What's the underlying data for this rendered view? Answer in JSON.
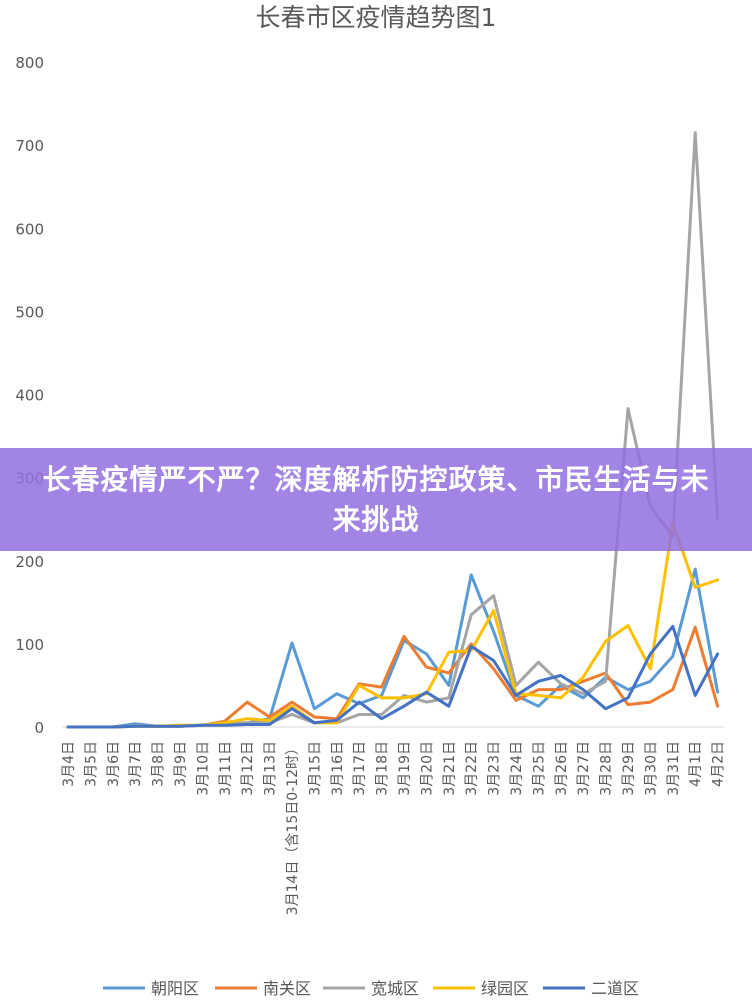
{
  "banner": {
    "headline": "长春疫情严不严？深度解析防控政策、市民生活与未来挑战"
  },
  "chart_data": {
    "type": "line",
    "title": "长春市区疫情趋势图1",
    "xlabel": "",
    "ylabel": "",
    "ylim": [
      0,
      800
    ],
    "yticks": [
      0,
      100,
      200,
      300,
      400,
      500,
      600,
      700,
      800
    ],
    "grid": false,
    "legend_position": "bottom",
    "categories": [
      "3月4日",
      "3月5日",
      "3月6日",
      "3月7日",
      "3月8日",
      "3月9日",
      "3月10日",
      "3月11日",
      "3月12日",
      "3月13日",
      "3月14日（含15日0-12时）",
      "3月15日",
      "3月16日",
      "3月17日",
      "3月18日",
      "3月19日",
      "3月20日",
      "3月21日",
      "3月22日",
      "3月23日",
      "3月24日",
      "3月25日",
      "3月26日",
      "3月27日",
      "3月28日",
      "3月29日",
      "3月30日",
      "3月31日",
      "4月1日",
      "4月2日"
    ],
    "series": [
      {
        "name": "朝阳区",
        "color": "#5b9bd5",
        "values": [
          0,
          0,
          0,
          4,
          1,
          1,
          2,
          4,
          5,
          10,
          101,
          22,
          40,
          28,
          38,
          104,
          88,
          50,
          183,
          115,
          38,
          25,
          50,
          35,
          60,
          45,
          55,
          85,
          190,
          42
        ]
      },
      {
        "name": "南关区",
        "color": "#ed7d31",
        "values": [
          0,
          0,
          0,
          1,
          1,
          1,
          2,
          7,
          30,
          12,
          30,
          12,
          10,
          52,
          48,
          109,
          72,
          65,
          100,
          70,
          32,
          45,
          45,
          55,
          65,
          27,
          30,
          45,
          120,
          25
        ]
      },
      {
        "name": "宽城区",
        "color": "#a5a5a5",
        "values": [
          0,
          0,
          0,
          1,
          1,
          1,
          2,
          4,
          5,
          5,
          15,
          5,
          5,
          15,
          15,
          38,
          30,
          35,
          135,
          158,
          50,
          78,
          52,
          40,
          55,
          383,
          265,
          230,
          715,
          250
        ]
      },
      {
        "name": "绿园区",
        "color": "#ffc000",
        "values": [
          0,
          0,
          0,
          1,
          1,
          2,
          2,
          5,
          10,
          8,
          25,
          5,
          5,
          50,
          35,
          35,
          40,
          90,
          92,
          140,
          40,
          38,
          35,
          60,
          103,
          122,
          70,
          245,
          168,
          177
        ]
      },
      {
        "name": "二道区",
        "color": "#4472c4",
        "values": [
          0,
          0,
          0,
          1,
          1,
          1,
          2,
          2,
          3,
          3,
          22,
          5,
          8,
          30,
          10,
          25,
          42,
          25,
          97,
          80,
          38,
          55,
          62,
          45,
          22,
          35,
          88,
          121,
          38,
          88
        ]
      }
    ]
  }
}
